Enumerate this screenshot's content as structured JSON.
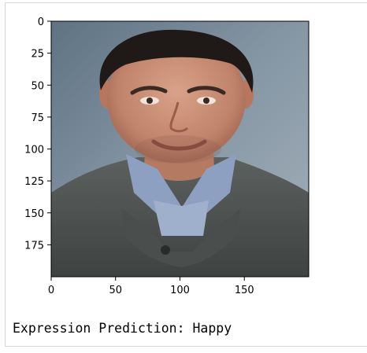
{
  "figure": {
    "image_icon": "portrait-photo-icon",
    "chart_data": {
      "type": "image",
      "title": "",
      "xlabel": "",
      "ylabel": "",
      "xlim": [
        0,
        200
      ],
      "ylim": [
        200,
        0
      ],
      "x_ticks": [
        0,
        50,
        100,
        150
      ],
      "y_ticks": [
        0,
        25,
        50,
        75,
        100,
        125,
        150,
        175
      ]
    }
  },
  "output": {
    "prediction_text": "Expression Prediction: Happy"
  }
}
